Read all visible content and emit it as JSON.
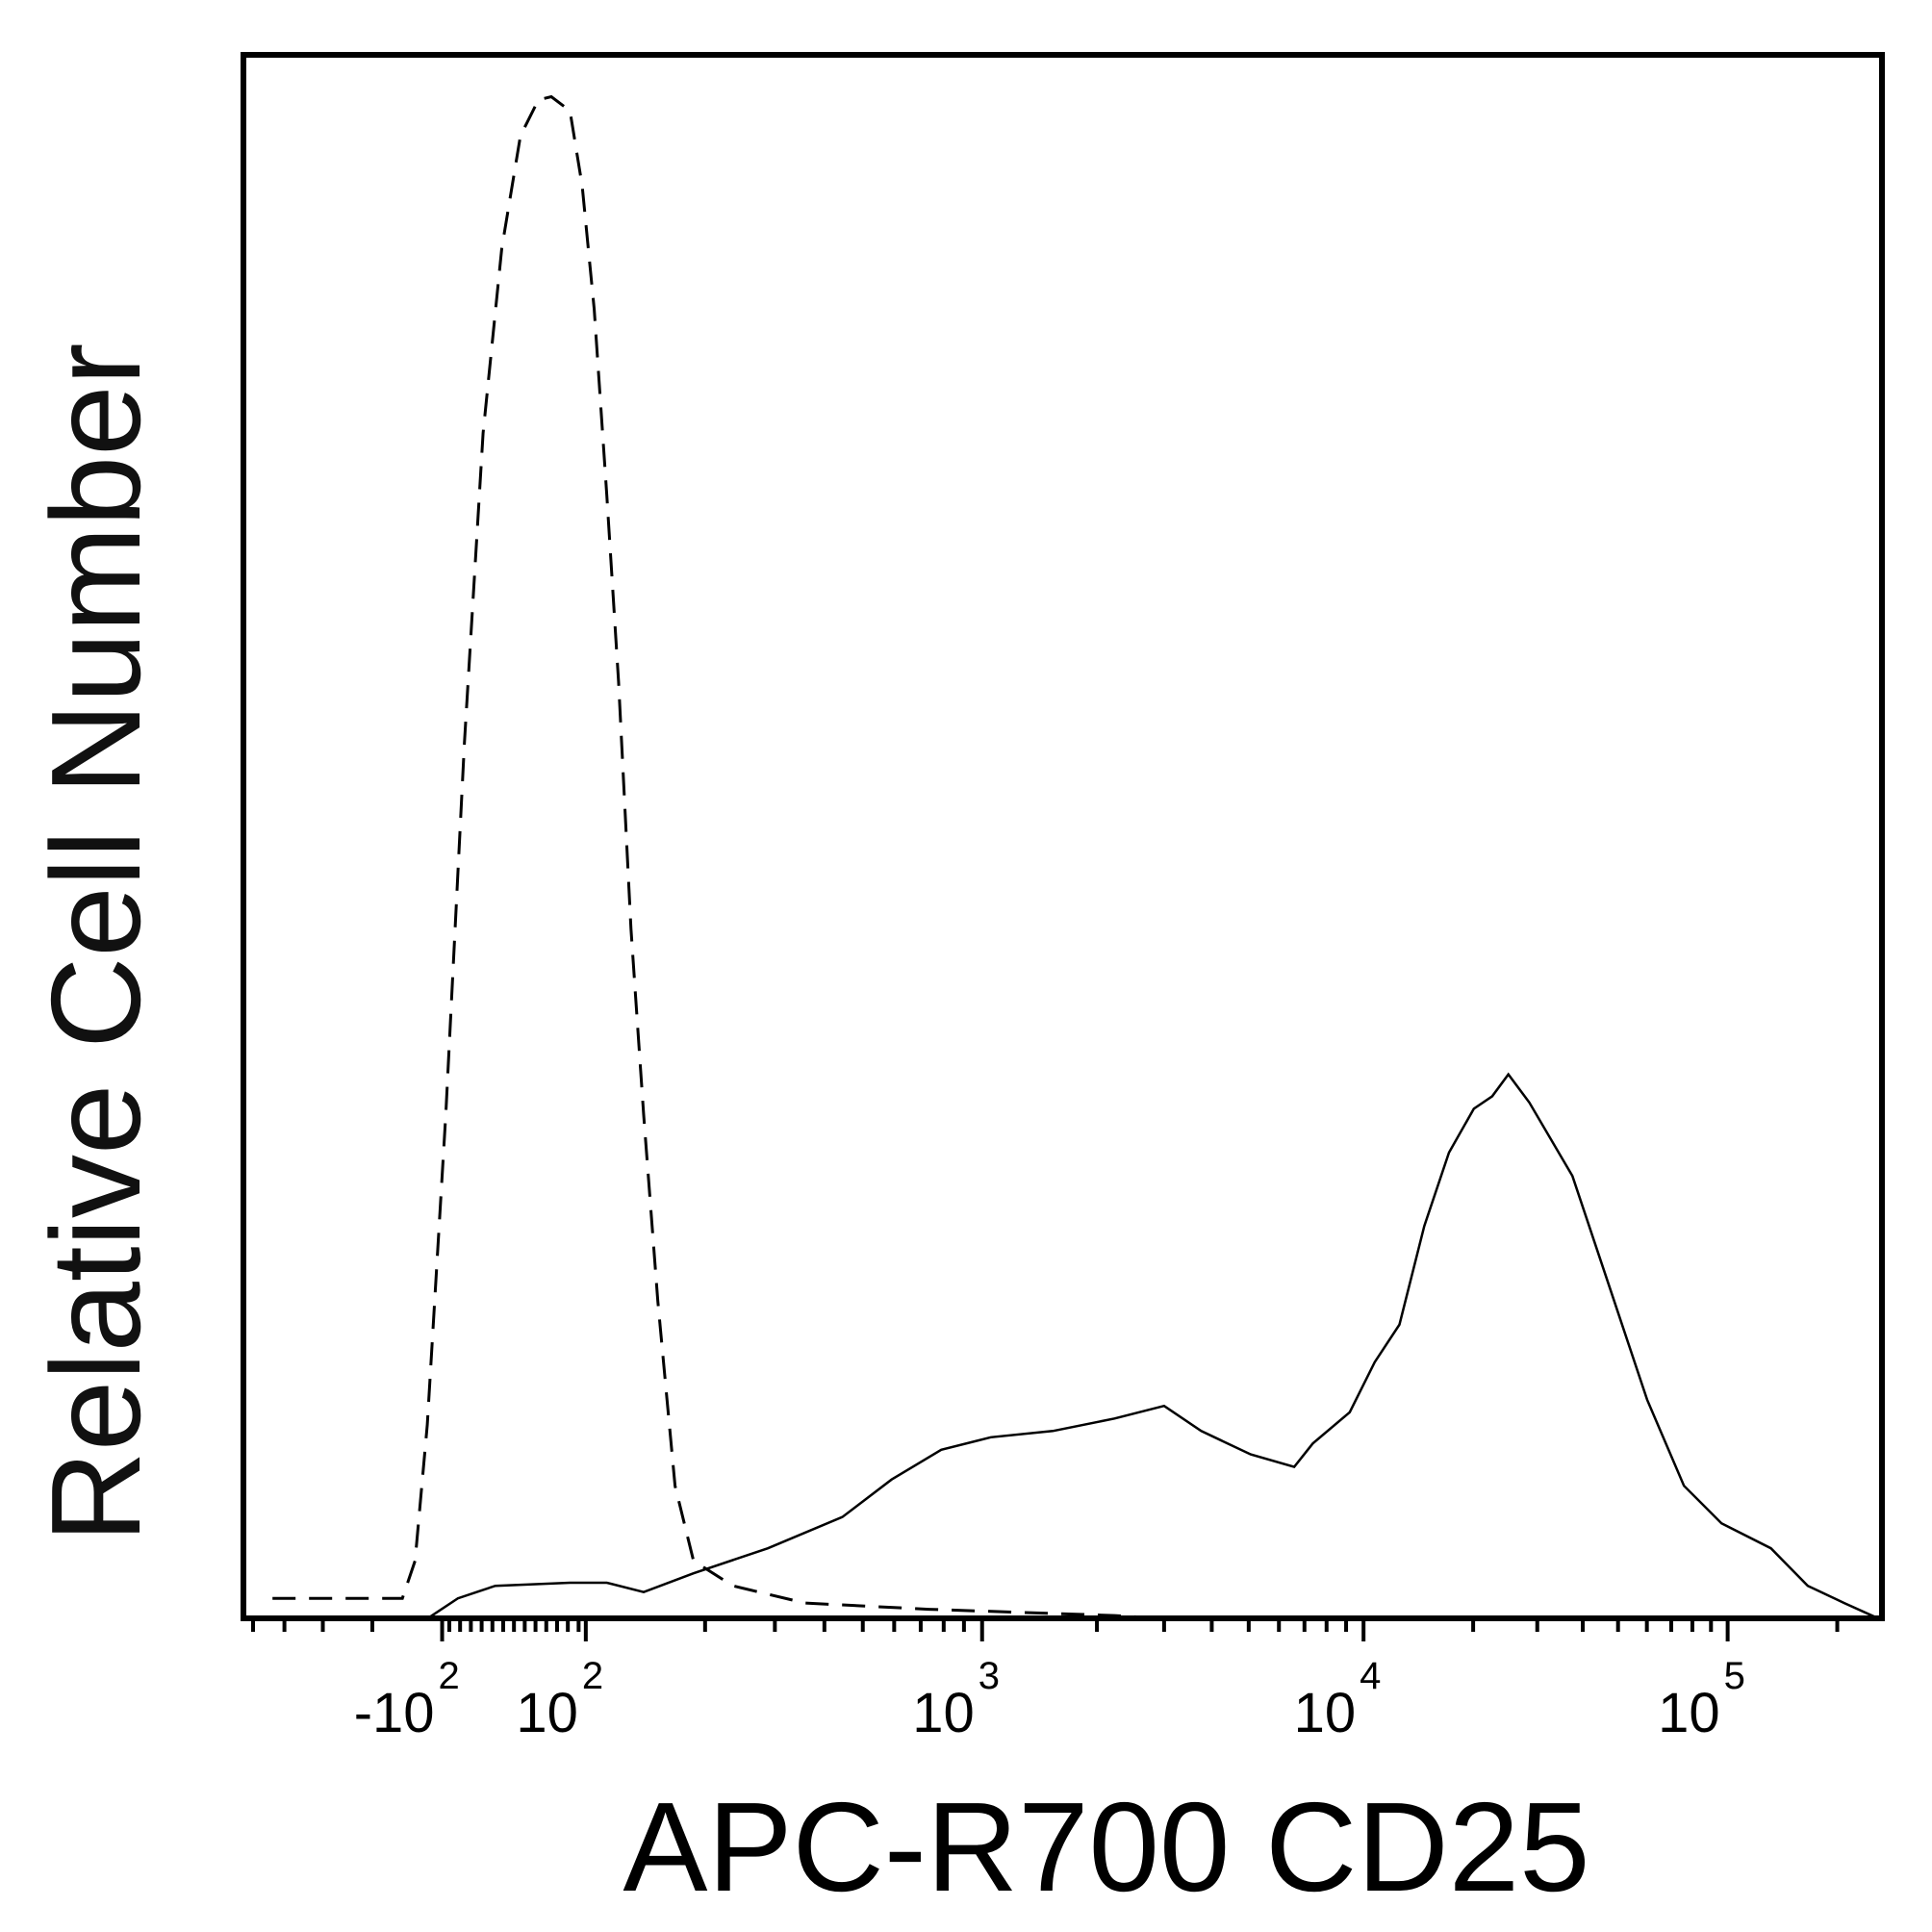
{
  "chart_data": {
    "type": "line",
    "title": "",
    "xlabel": "APC-R700 CD25",
    "ylabel": "Relative Cell Number",
    "x_scale": "biexponential",
    "xlim": [
      -318,
      260000
    ],
    "ylim": [
      0,
      100
    ],
    "grid": false,
    "tick_labels": [
      {
        "value": -100,
        "base": "-10",
        "exp": "2"
      },
      {
        "value": 100,
        "base": "10",
        "exp": "2"
      },
      {
        "value": 1000,
        "base": "10",
        "exp": "3"
      },
      {
        "value": 10000,
        "base": "10",
        "exp": "4"
      },
      {
        "value": 100000,
        "base": "10",
        "exp": "5"
      }
    ],
    "series": [
      {
        "style": "dashed",
        "color": "#000000",
        "x": [
          -268,
          -126,
          -117,
          -109,
          -95,
          -69,
          -43,
          -17,
          9,
          34,
          52,
          78,
          95,
          105,
          113,
          121,
          130,
          140,
          152,
          168,
          187,
          235,
          357,
          734,
          2225,
          3000
        ],
        "y": [
          1.3,
          1.3,
          3.7,
          12.4,
          32.2,
          56,
          75.8,
          87.6,
          94.8,
          97.1,
          97.3,
          96.4,
          91.6,
          83.7,
          71.8,
          59.9,
          44.1,
          32.2,
          20.3,
          8.5,
          3.7,
          2.1,
          1.0,
          0.6,
          0.2,
          0
        ]
      },
      {
        "style": "solid",
        "color": "#000000",
        "x": [
          -109,
          -78,
          -26,
          78,
          113,
          140,
          187,
          288,
          444,
          591,
          789,
          1054,
          1532,
          2225,
          3000,
          3755,
          5060,
          6580,
          7360,
          9200,
          10730,
          12550,
          14680,
          17170,
          20080,
          22560,
          24990,
          28530,
          37480,
          47530,
          60070,
          75850,
          96160,
          131500,
          166000,
          209000,
          260000
        ],
        "y": [
          0,
          1.3,
          2.1,
          2.3,
          2.3,
          1.7,
          2.9,
          4.5,
          6.5,
          8.9,
          10.8,
          11.6,
          12.0,
          12.8,
          13.6,
          12.0,
          10.5,
          9.7,
          11.2,
          13.2,
          16.4,
          18.8,
          25.1,
          29.8,
          32.6,
          33.4,
          34.8,
          33.0,
          28.3,
          21.1,
          14.0,
          8.5,
          6.1,
          4.5,
          2.1,
          1.0,
          0
        ]
      }
    ]
  }
}
